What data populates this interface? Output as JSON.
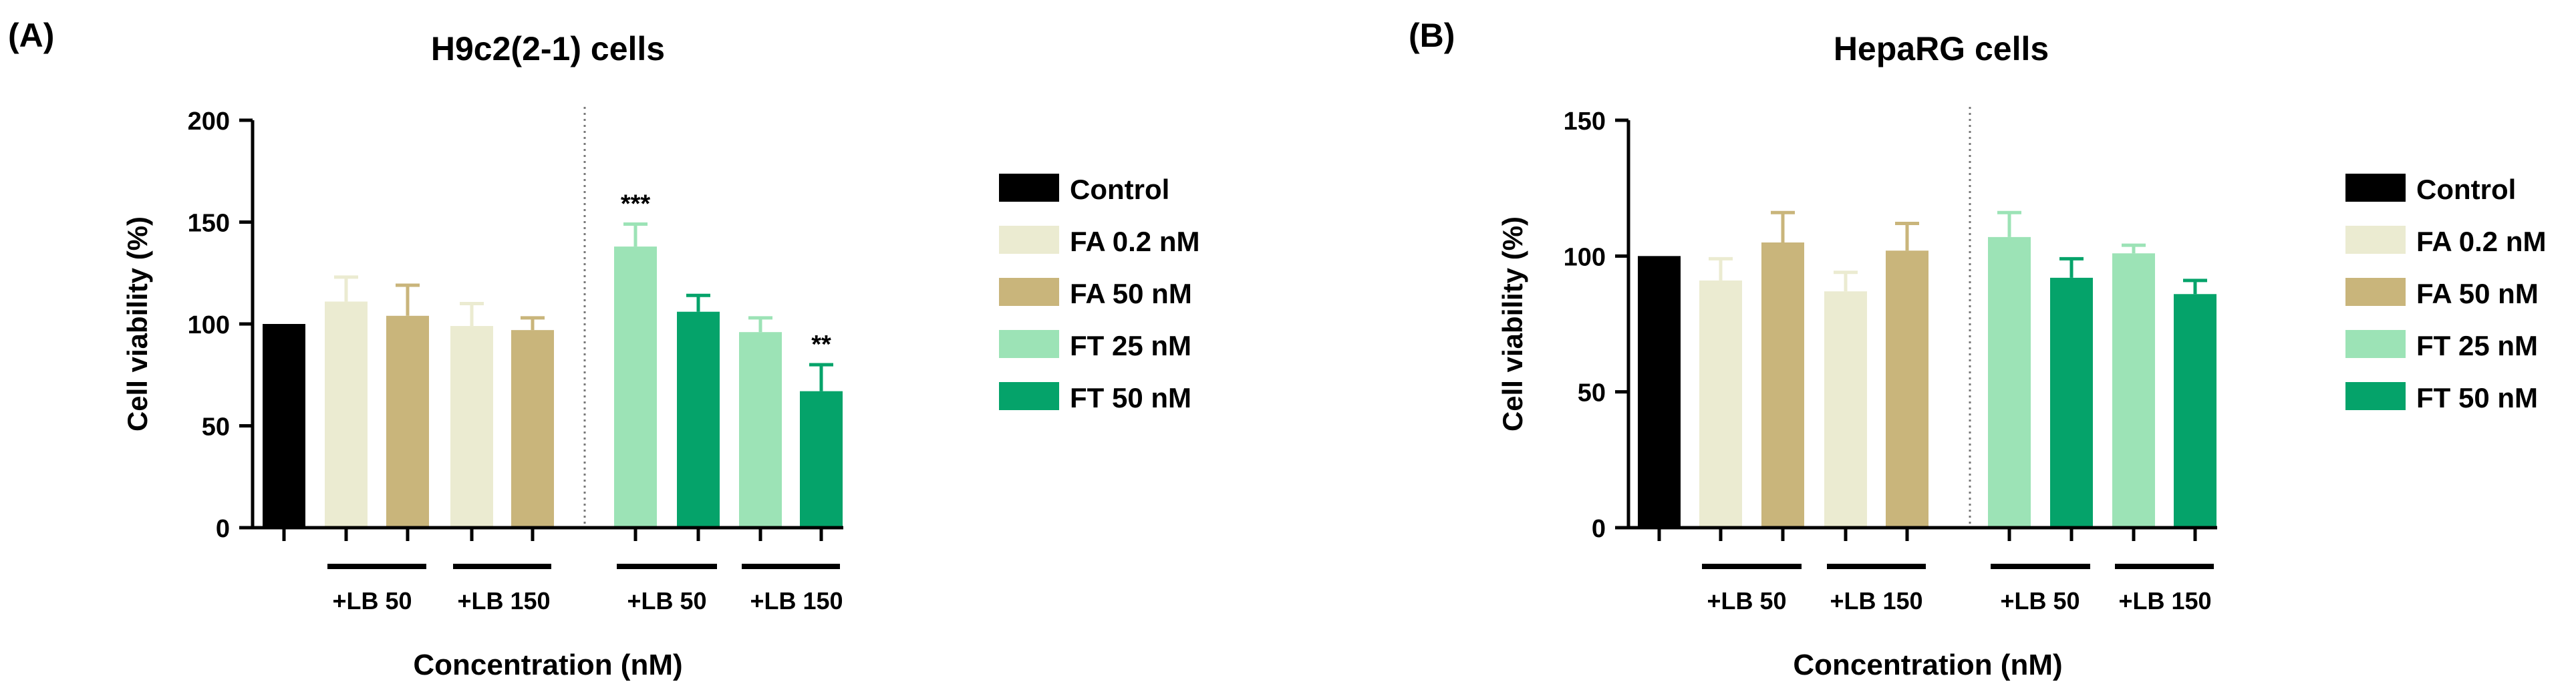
{
  "colors": {
    "Control": "#000000",
    "FA 0.2 nM": "#ebebd1",
    "FA 50 nM": "#c9b57b",
    "FT 25 nM": "#9ce3b6",
    "FT 50 nM": "#05a36a"
  },
  "chart_data": [
    {
      "type": "bar",
      "panel_label": "(A)",
      "title": "H9c2(2-1) cells",
      "xlabel": "Concentration (nM)",
      "ylabel": "Cell viability (%)",
      "ylim": [
        0,
        200
      ],
      "yticks": [
        "0",
        "50",
        "100",
        "150",
        "200"
      ],
      "grid": false,
      "legend_position": "right",
      "legend": [
        "Control",
        "FA 0.2 nM",
        "FA 50 nM",
        "FT 25 nM",
        "FT 50 nM"
      ],
      "bars": [
        {
          "series": "Control",
          "value": 100,
          "error": 0,
          "sig": ""
        },
        {
          "series": "FA 0.2 nM",
          "value": 111,
          "error": 12,
          "sig": ""
        },
        {
          "series": "FA 50 nM",
          "value": 104,
          "error": 15,
          "sig": ""
        },
        {
          "series": "FA 0.2 nM",
          "value": 99,
          "error": 11,
          "sig": ""
        },
        {
          "series": "FA 50 nM",
          "value": 97,
          "error": 6,
          "sig": ""
        },
        {
          "series": "FT 25 nM",
          "value": 138,
          "error": 11,
          "sig": "***"
        },
        {
          "series": "FT 50 nM",
          "value": 106,
          "error": 8,
          "sig": ""
        },
        {
          "series": "FT 25 nM",
          "value": 96,
          "error": 7,
          "sig": ""
        },
        {
          "series": "FT 50 nM",
          "value": 67,
          "error": 13,
          "sig": "**"
        }
      ],
      "group_labels": [
        "+LB 50",
        "+LB 150",
        "+LB 50",
        "+LB 150"
      ]
    },
    {
      "type": "bar",
      "panel_label": "(B)",
      "title": "HepaRG cells",
      "xlabel": "Concentration (nM)",
      "ylabel": "Cell viability (%)",
      "ylim": [
        0,
        150
      ],
      "yticks": [
        "0",
        "50",
        "100",
        "150"
      ],
      "grid": false,
      "legend_position": "right",
      "legend": [
        "Control",
        "FA 0.2 nM",
        "FA 50 nM",
        "FT 25 nM",
        "FT 50 nM"
      ],
      "bars": [
        {
          "series": "Control",
          "value": 100,
          "error": 0,
          "sig": ""
        },
        {
          "series": "FA 0.2 nM",
          "value": 91,
          "error": 8,
          "sig": ""
        },
        {
          "series": "FA 50 nM",
          "value": 105,
          "error": 11,
          "sig": ""
        },
        {
          "series": "FA 0.2 nM",
          "value": 87,
          "error": 7,
          "sig": ""
        },
        {
          "series": "FA 50 nM",
          "value": 102,
          "error": 10,
          "sig": ""
        },
        {
          "series": "FT 25 nM",
          "value": 107,
          "error": 9,
          "sig": ""
        },
        {
          "series": "FT 50 nM",
          "value": 92,
          "error": 7,
          "sig": ""
        },
        {
          "series": "FT 25 nM",
          "value": 101,
          "error": 3,
          "sig": ""
        },
        {
          "series": "FT 50 nM",
          "value": 86,
          "error": 5,
          "sig": ""
        }
      ],
      "group_labels": [
        "+LB 50",
        "+LB 150",
        "+LB 50",
        "+LB 150"
      ]
    }
  ]
}
